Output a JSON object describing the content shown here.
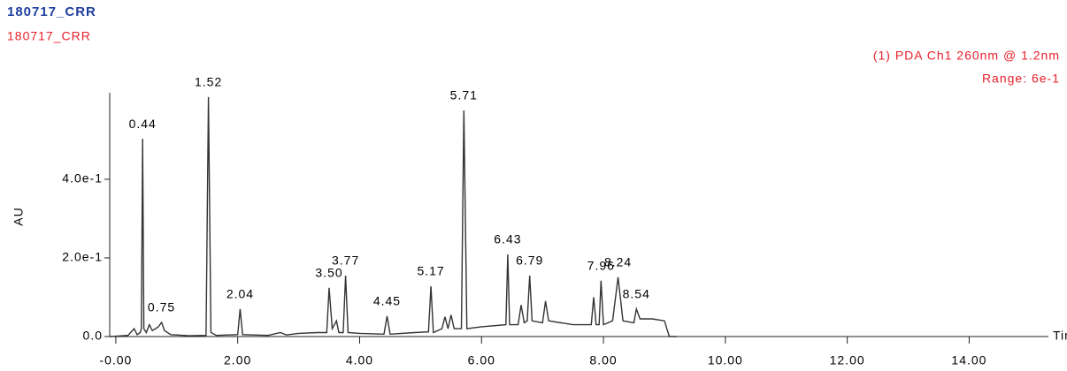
{
  "chart_data": {
    "type": "line",
    "title": "180717_CRR",
    "subtitle": "180717_CRR",
    "channel": "(1) PDA Ch1 260nm @ 1.2nm",
    "range": "Range: 6e-1",
    "xlabel": "Time",
    "ylabel": "AU",
    "xlim": [
      -0.1,
      15.3
    ],
    "ylim": [
      0,
      0.62
    ],
    "xticks": [
      {
        "value": 0,
        "label": "-0.00"
      },
      {
        "value": 2,
        "label": "2.00"
      },
      {
        "value": 4,
        "label": "4.00"
      },
      {
        "value": 6,
        "label": "6.00"
      },
      {
        "value": 8,
        "label": "8.00"
      },
      {
        "value": 10,
        "label": "10.00"
      },
      {
        "value": 12,
        "label": "12.00"
      },
      {
        "value": 14,
        "label": "14.00"
      }
    ],
    "yticks": [
      {
        "value": 0,
        "label": "0.0"
      },
      {
        "value": 0.2,
        "label": "2.0e-1"
      },
      {
        "value": 0.4,
        "label": "4.0e-1"
      }
    ],
    "series": [
      {
        "color": "#333333",
        "x": [
          -0.1,
          0.2,
          0.3,
          0.35,
          0.4,
          0.42,
          0.44,
          0.46,
          0.5,
          0.55,
          0.6,
          0.65,
          0.7,
          0.75,
          0.8,
          0.9,
          1.2,
          1.48,
          1.52,
          1.56,
          1.65,
          2.0,
          2.04,
          2.08,
          2.5,
          2.7,
          2.8,
          3.0,
          3.3,
          3.46,
          3.5,
          3.55,
          3.62,
          3.66,
          3.73,
          3.77,
          3.81,
          4.0,
          4.4,
          4.45,
          4.5,
          4.9,
          5.13,
          5.17,
          5.21,
          5.35,
          5.4,
          5.45,
          5.5,
          5.55,
          5.67,
          5.71,
          5.76,
          6.0,
          6.4,
          6.43,
          6.46,
          6.6,
          6.65,
          6.7,
          6.75,
          6.79,
          6.83,
          7.0,
          7.05,
          7.1,
          7.5,
          7.8,
          7.84,
          7.88,
          7.93,
          7.96,
          8.0,
          8.15,
          8.24,
          8.32,
          8.5,
          8.54,
          8.6,
          8.8,
          9.0,
          9.08,
          9.2
        ],
        "values": [
          0,
          0.003,
          0.02,
          0.005,
          0.01,
          0.02,
          0.503,
          0.02,
          0.01,
          0.03,
          0.015,
          0.02,
          0.025,
          0.036,
          0.015,
          0.005,
          0.002,
          0.003,
          0.609,
          0.01,
          0.003,
          0.005,
          0.07,
          0.005,
          0.003,
          0.01,
          0.004,
          0.008,
          0.01,
          0.01,
          0.124,
          0.02,
          0.04,
          0.01,
          0.01,
          0.155,
          0.01,
          0.008,
          0.006,
          0.052,
          0.006,
          0.01,
          0.012,
          0.128,
          0.01,
          0.02,
          0.05,
          0.02,
          0.055,
          0.02,
          0.02,
          0.575,
          0.02,
          0.025,
          0.03,
          0.209,
          0.03,
          0.03,
          0.08,
          0.035,
          0.04,
          0.155,
          0.04,
          0.035,
          0.09,
          0.04,
          0.03,
          0.03,
          0.1,
          0.03,
          0.03,
          0.142,
          0.03,
          0.04,
          0.151,
          0.04,
          0.035,
          0.07,
          0.045,
          0.045,
          0.04,
          0,
          0
        ]
      }
    ],
    "peaks": [
      {
        "time": 0.44,
        "label": "0.44",
        "height": 0.503
      },
      {
        "time": 0.75,
        "label": "0.75",
        "height": 0.036
      },
      {
        "time": 1.52,
        "label": "1.52",
        "height": 0.609
      },
      {
        "time": 2.04,
        "label": "2.04",
        "height": 0.07
      },
      {
        "time": 3.5,
        "label": "3.50",
        "height": 0.124
      },
      {
        "time": 3.77,
        "label": "3.77",
        "height": 0.155
      },
      {
        "time": 4.45,
        "label": "4.45",
        "height": 0.052
      },
      {
        "time": 5.17,
        "label": "5.17",
        "height": 0.128
      },
      {
        "time": 5.71,
        "label": "5.71",
        "height": 0.575
      },
      {
        "time": 6.43,
        "label": "6.43",
        "height": 0.209
      },
      {
        "time": 6.79,
        "label": "6.79",
        "height": 0.155
      },
      {
        "time": 7.96,
        "label": "7.96",
        "height": 0.142
      },
      {
        "time": 8.24,
        "label": "8.24",
        "height": 0.151
      },
      {
        "time": 8.54,
        "label": "8.54",
        "height": 0.07
      }
    ]
  }
}
